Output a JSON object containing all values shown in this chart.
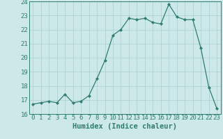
{
  "x": [
    0,
    1,
    2,
    3,
    4,
    5,
    6,
    7,
    8,
    9,
    10,
    11,
    12,
    13,
    14,
    15,
    16,
    17,
    18,
    19,
    20,
    21,
    22,
    23
  ],
  "y": [
    16.7,
    16.8,
    16.9,
    16.8,
    17.4,
    16.8,
    16.9,
    17.3,
    18.5,
    19.8,
    21.6,
    22.0,
    22.8,
    22.7,
    22.8,
    22.5,
    22.4,
    23.8,
    22.9,
    22.7,
    22.7,
    20.7,
    17.9,
    16.4
  ],
  "line_color": "#2e7d6e",
  "marker": "D",
  "marker_size": 2.2,
  "bg_color": "#cce8e8",
  "grid_color": "#aacece",
  "tick_color": "#2e7d6e",
  "xlabel": "Humidex (Indice chaleur)",
  "xlim": [
    -0.5,
    23.5
  ],
  "ylim": [
    16,
    24
  ],
  "yticks": [
    16,
    17,
    18,
    19,
    20,
    21,
    22,
    23,
    24
  ],
  "xticks": [
    0,
    1,
    2,
    3,
    4,
    5,
    6,
    7,
    8,
    9,
    10,
    11,
    12,
    13,
    14,
    15,
    16,
    17,
    18,
    19,
    20,
    21,
    22,
    23
  ],
  "font_size": 6.5,
  "xlabel_font_size": 7.5,
  "linewidth": 0.9
}
